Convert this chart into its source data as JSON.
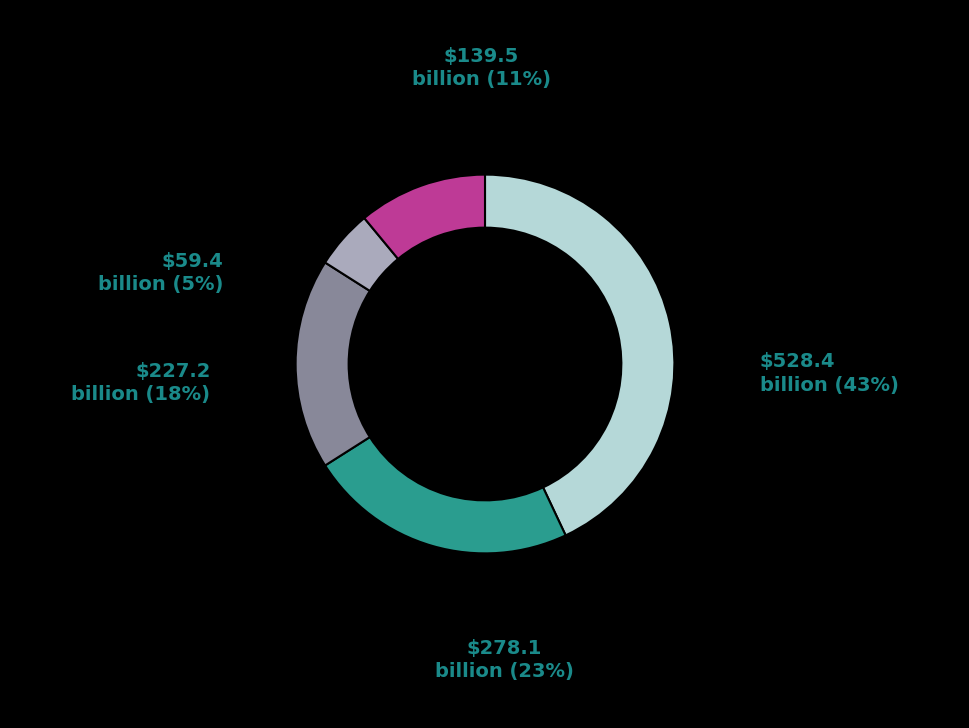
{
  "slices": [
    {
      "label": "$528.4\nbillion (43%)",
      "value": 43,
      "color": "#b5d8d8"
    },
    {
      "label": "$278.1\nbillion (23%)",
      "value": 23,
      "color": "#2a9d8f"
    },
    {
      "label": "$227.2\nbillion (18%)",
      "value": 18,
      "color": "#888899"
    },
    {
      "label": "$59.4\nbillion (5%)",
      "value": 5,
      "color": "#aaaabc"
    },
    {
      "label": "$139.5\nbillion (11%)",
      "value": 11,
      "color": "#be3a96"
    }
  ],
  "background_color": "#000000",
  "label_color": "#1a8a8a",
  "label_fontsize": 14,
  "label_fontweight": "bold",
  "start_angle": 90,
  "donut_width": 0.28,
  "fig_width": 9.7,
  "fig_height": 7.28,
  "dpi": 100
}
